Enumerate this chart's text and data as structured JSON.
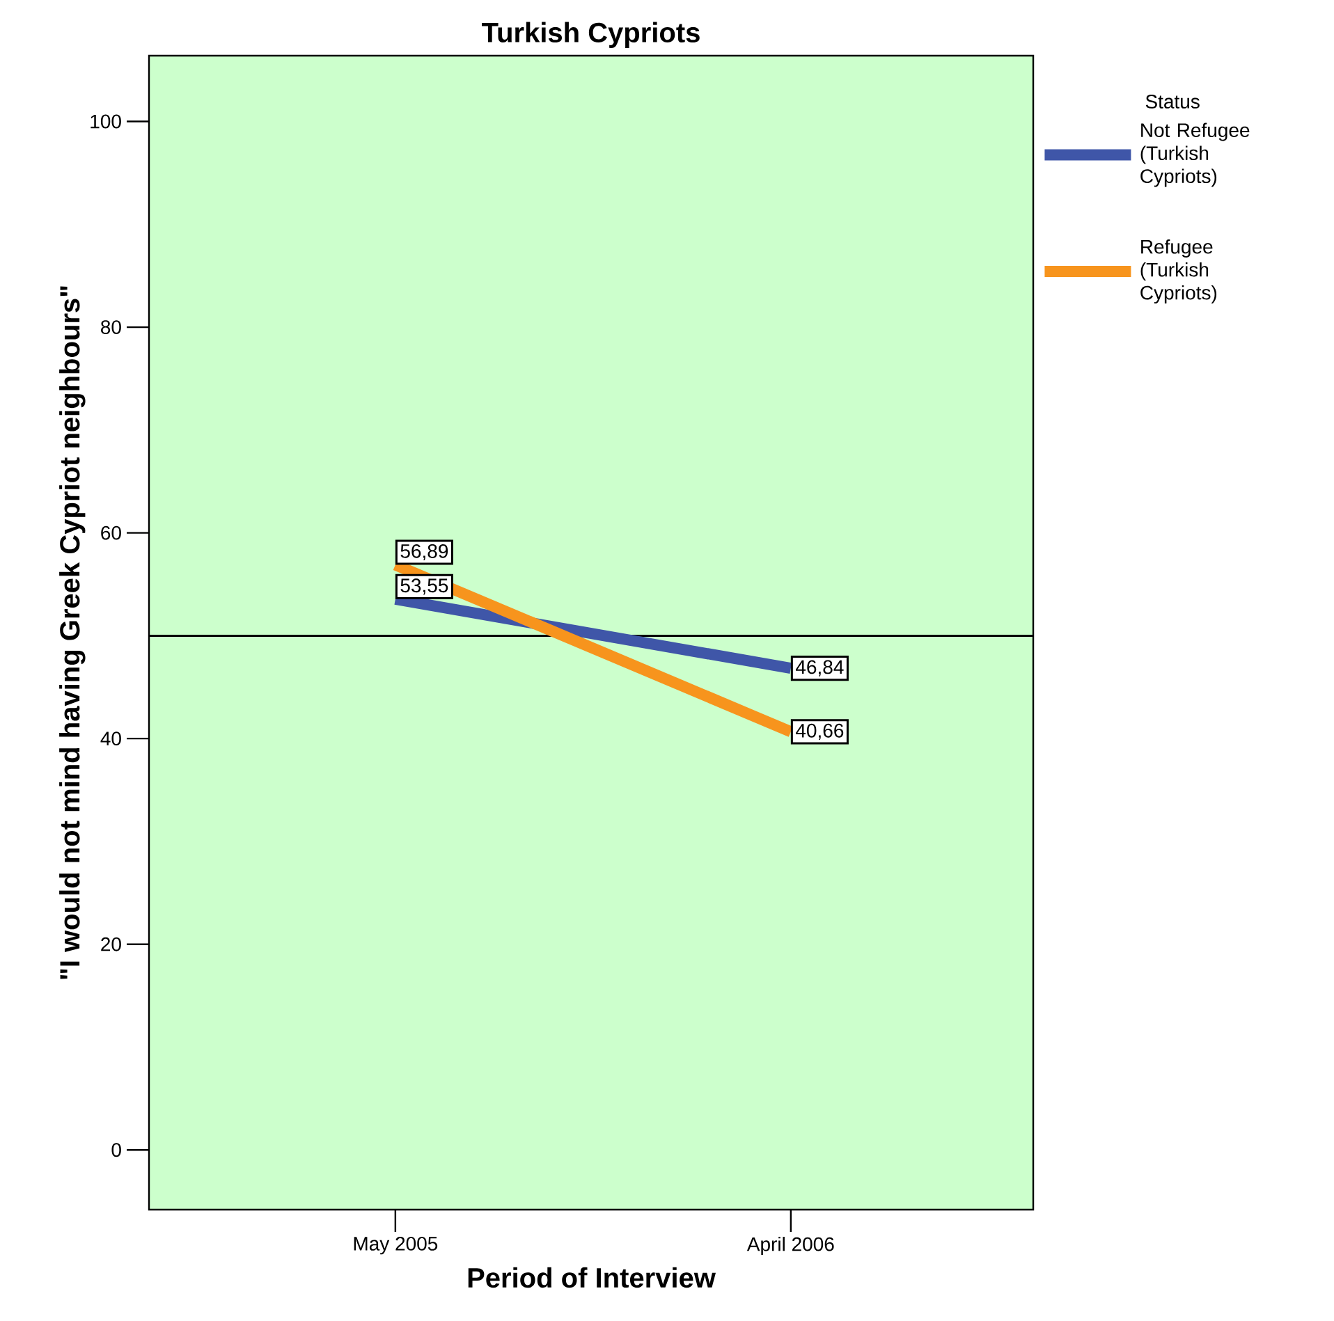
{
  "chart_data": {
    "type": "line",
    "title": "Turkish Cypriots",
    "xlabel": "Period of Interview",
    "ylabel": "\"I would not mind having Greek Cypriot neighbours\"",
    "legend_title": "Status",
    "categories": [
      "May 2005",
      "April 2006"
    ],
    "series": [
      {
        "name": "Not Refugee (Turkish Cypriots)",
        "color": "#3f56a8",
        "values": [
          53.55,
          46.84
        ],
        "value_labels": [
          "53,55",
          "46,84"
        ]
      },
      {
        "name": "Refugee (Turkish Cypriots)",
        "color": "#f7941d",
        "values": [
          56.89,
          40.66
        ],
        "value_labels": [
          "56,89",
          "40,66"
        ]
      }
    ],
    "ylim": [
      -5.8,
      106.4
    ],
    "yticks": [
      0,
      20,
      40,
      60,
      80,
      100
    ],
    "ref_lines": [
      {
        "axis": "y",
        "value": 50,
        "color": "#000000"
      }
    ],
    "legend": "top right",
    "line_style": "solid"
  }
}
